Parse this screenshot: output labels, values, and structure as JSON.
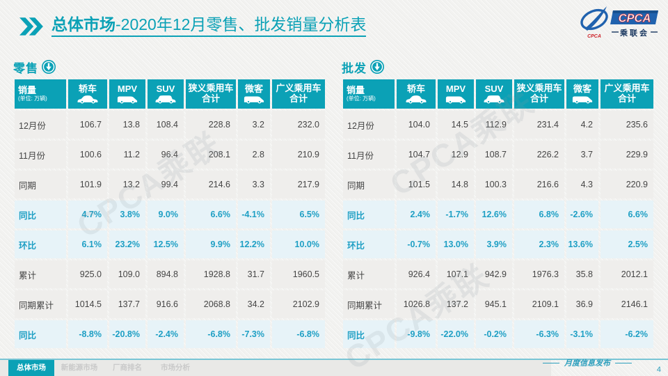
{
  "slide": {
    "title_bold": "总体市场",
    "title_rest": "-2020年12月零售、批发销量分析表",
    "page_number": "4",
    "release_note": "月度信息发布",
    "watermark": "CPCA乘联"
  },
  "logo": {
    "name_en": "CPCA",
    "name_cn": "乘联会",
    "emblem_text": "CPCA"
  },
  "table_columns": {
    "first": {
      "title": "销量",
      "unit": "(单位: 万辆)"
    },
    "cols": [
      {
        "label": "轿车",
        "icon": "sedan-icon",
        "shape": "sedan"
      },
      {
        "label": "MPV",
        "icon": "mpv-icon",
        "shape": "van"
      },
      {
        "label": "SUV",
        "icon": "suv-icon",
        "shape": "suv"
      },
      {
        "label": "狭义乘用车合计"
      },
      {
        "label": "微客",
        "icon": "van-icon",
        "shape": "van"
      },
      {
        "label": "广义乘用车合计"
      }
    ]
  },
  "tables": [
    {
      "section_title": "零售",
      "rows": [
        {
          "label": "12月份",
          "type": "data",
          "values": [
            "106.7",
            "13.8",
            "108.4",
            "228.8",
            "3.2",
            "232.0"
          ]
        },
        {
          "label": "11月份",
          "type": "data",
          "values": [
            "100.6",
            "11.2",
            "96.4",
            "208.1",
            "2.8",
            "210.9"
          ]
        },
        {
          "label": "同期",
          "type": "data",
          "values": [
            "101.9",
            "13.2",
            "99.4",
            "214.6",
            "3.3",
            "217.9"
          ]
        },
        {
          "label": "同比",
          "type": "pct",
          "values": [
            "4.7%",
            "3.8%",
            "9.0%",
            "6.6%",
            "-4.1%",
            "6.5%"
          ]
        },
        {
          "label": "环比",
          "type": "pct",
          "values": [
            "6.1%",
            "23.2%",
            "12.5%",
            "9.9%",
            "12.2%",
            "10.0%"
          ]
        },
        {
          "label": "累计",
          "type": "data",
          "values": [
            "925.0",
            "109.0",
            "894.8",
            "1928.8",
            "31.7",
            "1960.5"
          ]
        },
        {
          "label": "同期累计",
          "type": "data",
          "values": [
            "1014.5",
            "137.7",
            "916.6",
            "2068.8",
            "34.2",
            "2102.9"
          ]
        },
        {
          "label": "同比",
          "type": "pct",
          "values": [
            "-8.8%",
            "-20.8%",
            "-2.4%",
            "-6.8%",
            "-7.3%",
            "-6.8%"
          ]
        }
      ]
    },
    {
      "section_title": "批发",
      "rows": [
        {
          "label": "12月份",
          "type": "data",
          "values": [
            "104.0",
            "14.5",
            "112.9",
            "231.4",
            "4.2",
            "235.6"
          ]
        },
        {
          "label": "11月份",
          "type": "data",
          "values": [
            "104.7",
            "12.9",
            "108.7",
            "226.2",
            "3.7",
            "229.9"
          ]
        },
        {
          "label": "同期",
          "type": "data",
          "values": [
            "101.5",
            "14.8",
            "100.3",
            "216.6",
            "4.3",
            "220.9"
          ]
        },
        {
          "label": "同比",
          "type": "pct",
          "values": [
            "2.4%",
            "-1.7%",
            "12.6%",
            "6.8%",
            "-2.6%",
            "6.6%"
          ]
        },
        {
          "label": "环比",
          "type": "pct",
          "values": [
            "-0.7%",
            "13.0%",
            "3.9%",
            "2.3%",
            "13.6%",
            "2.5%"
          ]
        },
        {
          "label": "累计",
          "type": "data",
          "values": [
            "926.4",
            "107.1",
            "942.9",
            "1976.3",
            "35.8",
            "2012.1"
          ]
        },
        {
          "label": "同期累计",
          "type": "data",
          "values": [
            "1026.8",
            "137.2",
            "945.1",
            "2109.1",
            "36.9",
            "2146.1"
          ]
        },
        {
          "label": "同比",
          "type": "pct",
          "values": [
            "-9.8%",
            "-22.0%",
            "-0.2%",
            "-6.3%",
            "-3.1%",
            "-6.2%"
          ]
        }
      ]
    }
  ],
  "footer_tabs": [
    {
      "label": "总体市场",
      "active": true
    },
    {
      "label": "新能源市场",
      "active": false
    },
    {
      "label": "厂商排名",
      "active": false
    },
    {
      "label": "市场分析",
      "active": false
    }
  ],
  "colors": {
    "teal": "#0ba1b6",
    "pct_text": "#1e9fc4",
    "pct_row_bg": "#e7f3f8",
    "cell_bg": "#efeeec",
    "logo_blue": "#2062ae",
    "logo_red": "#cc2229",
    "tab_inactive_text": "#c9c9c9"
  }
}
